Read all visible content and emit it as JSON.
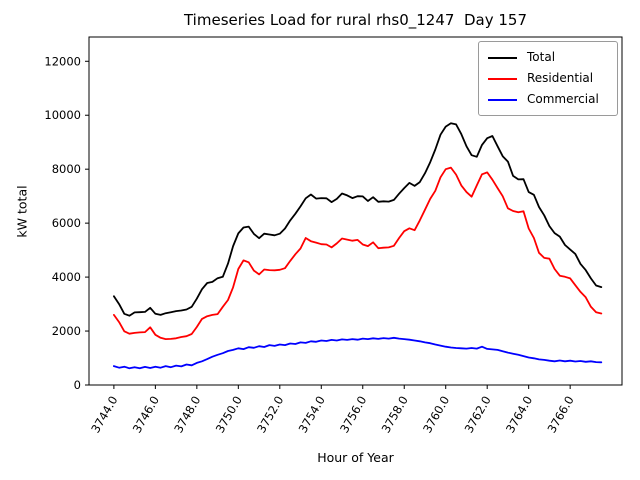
{
  "window": {
    "background": "#ffffff"
  },
  "chart_data": {
    "type": "line",
    "title": "Timeseries Load for rural rhs0_1247  Day 157",
    "xlabel": "Hour of Year",
    "ylabel": "kW total",
    "grid": false,
    "legend_position": "upper right",
    "xlim": [
      3742.8,
      3768.5
    ],
    "ylim": [
      0,
      12900
    ],
    "xticks": [
      3744,
      3746,
      3748,
      3750,
      3752,
      3754,
      3756,
      3758,
      3760,
      3762,
      3764,
      3766
    ],
    "xtick_labels": [
      "3744.0",
      "3746.0",
      "3748.0",
      "3750.0",
      "3752.0",
      "3754.0",
      "3756.0",
      "3758.0",
      "3760.0",
      "3762.0",
      "3764.0",
      "3766.0"
    ],
    "xtick_rotation": 60,
    "yticks": [
      0,
      2000,
      4000,
      6000,
      8000,
      10000,
      12000
    ],
    "ytick_labels": [
      "0",
      "2000",
      "4000",
      "6000",
      "8000",
      "10000",
      "12000"
    ],
    "x_start": 3744.0,
    "x_step": 0.25,
    "axis_color": "#000000",
    "series": [
      {
        "name": "Total",
        "color": "#000000",
        "values": [
          3290,
          3000,
          2640,
          2570,
          2690,
          2700,
          2710,
          2860,
          2640,
          2600,
          2660,
          2700,
          2740,
          2760,
          2800,
          2900,
          3200,
          3550,
          3780,
          3820,
          3960,
          4010,
          4500,
          5150,
          5620,
          5840,
          5870,
          5600,
          5440,
          5610,
          5580,
          5550,
          5610,
          5800,
          6100,
          6350,
          6620,
          6920,
          7060,
          6910,
          6930,
          6920,
          6780,
          6900,
          7100,
          7030,
          6930,
          7000,
          6990,
          6820,
          6960,
          6790,
          6810,
          6800,
          6860,
          7090,
          7300,
          7490,
          7380,
          7520,
          7850,
          8260,
          8730,
          9280,
          9580,
          9700,
          9660,
          9300,
          8850,
          8520,
          8460,
          8900,
          9150,
          9230,
          8850,
          8480,
          8280,
          7750,
          7620,
          7630,
          7150,
          7050,
          6600,
          6290,
          5890,
          5630,
          5500,
          5190,
          5020,
          4860,
          4490,
          4260,
          3950,
          3690,
          3630
        ]
      },
      {
        "name": "Residential",
        "color": "#ff0000",
        "values": [
          2600,
          2330,
          1990,
          1900,
          1930,
          1950,
          1960,
          2140,
          1860,
          1750,
          1700,
          1710,
          1730,
          1780,
          1810,
          1890,
          2150,
          2450,
          2550,
          2600,
          2630,
          2900,
          3150,
          3620,
          4300,
          4620,
          4550,
          4240,
          4100,
          4280,
          4260,
          4250,
          4270,
          4330,
          4600,
          4850,
          5060,
          5450,
          5330,
          5280,
          5220,
          5210,
          5100,
          5250,
          5430,
          5390,
          5350,
          5380,
          5210,
          5150,
          5290,
          5070,
          5090,
          5100,
          5160,
          5450,
          5700,
          5810,
          5740,
          6100,
          6500,
          6900,
          7200,
          7700,
          8000,
          8060,
          7800,
          7400,
          7150,
          6980,
          7400,
          7810,
          7880,
          7610,
          7300,
          7000,
          6550,
          6450,
          6400,
          6440,
          5800,
          5450,
          4900,
          4710,
          4680,
          4300,
          4050,
          4010,
          3950,
          3700,
          3450,
          3250,
          2900,
          2700,
          2650
        ]
      },
      {
        "name": "Commercial",
        "color": "#0000ff",
        "values": [
          700,
          640,
          680,
          620,
          660,
          620,
          670,
          630,
          680,
          640,
          700,
          660,
          720,
          690,
          760,
          730,
          820,
          880,
          960,
          1050,
          1120,
          1180,
          1260,
          1300,
          1360,
          1330,
          1400,
          1380,
          1440,
          1410,
          1480,
          1450,
          1500,
          1480,
          1540,
          1520,
          1580,
          1560,
          1620,
          1600,
          1650,
          1630,
          1670,
          1650,
          1690,
          1670,
          1700,
          1680,
          1720,
          1700,
          1730,
          1710,
          1740,
          1720,
          1750,
          1720,
          1700,
          1680,
          1650,
          1620,
          1580,
          1550,
          1500,
          1460,
          1420,
          1390,
          1370,
          1360,
          1350,
          1370,
          1350,
          1420,
          1340,
          1320,
          1300,
          1250,
          1200,
          1160,
          1120,
          1070,
          1020,
          990,
          950,
          930,
          900,
          880,
          910,
          880,
          900,
          870,
          890,
          860,
          880,
          850,
          840
        ]
      }
    ]
  }
}
